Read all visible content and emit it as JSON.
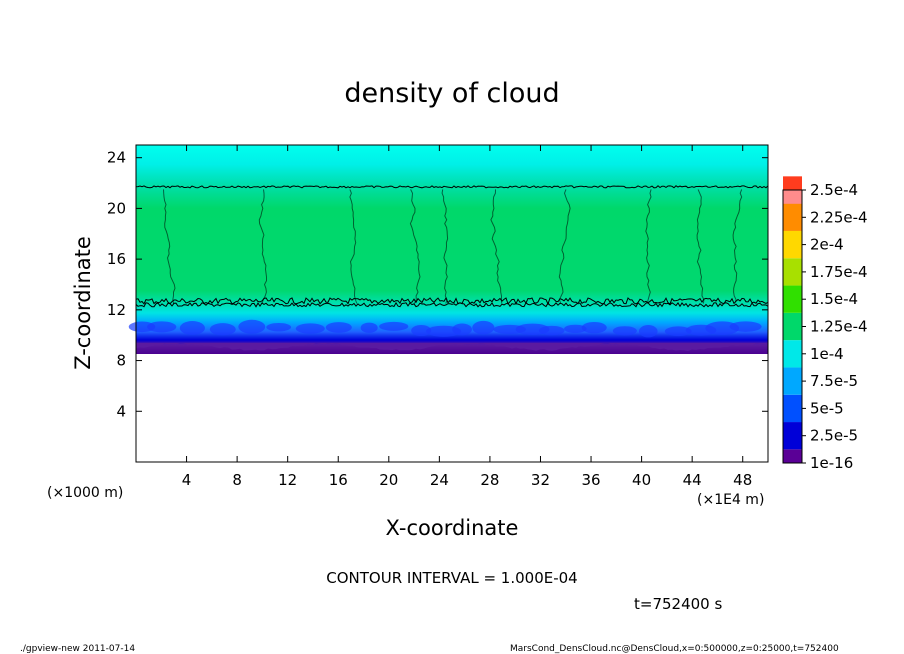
{
  "chart_data": {
    "type": "heatmap",
    "title": "density of cloud",
    "xlabel": "X-coordinate",
    "ylabel": "Z-coordinate",
    "x_unit_note": "(×1E4 m)",
    "y_unit_note": "(×1000 m)",
    "x_ticks": [
      "4",
      "8",
      "12",
      "16",
      "20",
      "24",
      "28",
      "32",
      "36",
      "40",
      "44",
      "48"
    ],
    "y_ticks": [
      "4",
      "8",
      "12",
      "16",
      "20",
      "24"
    ],
    "xlim": [
      0,
      50
    ],
    "ylim": [
      0,
      25
    ],
    "contour_interval": "CONTOUR INTERVAL = 1.000E-04",
    "time_label": "t=752400 s",
    "colorbar": {
      "labels": [
        "1e-16",
        "2.5e-5",
        "5e-5",
        "7.5e-5",
        "1e-4",
        "1.25e-4",
        "1.5e-4",
        "1.75e-4",
        "2e-4",
        "2.25e-4",
        "2.5e-4"
      ],
      "colors": [
        "#5a0096",
        "#0000d8",
        "#0050ff",
        "#00a8ff",
        "#00e8e8",
        "#00d86a",
        "#30e000",
        "#a8e000",
        "#ffd800",
        "#ff8c00",
        "#ff3c1e",
        "#ff8c8c"
      ]
    },
    "cloud_profile": [
      {
        "z": 8.9,
        "value": "1e-16"
      },
      {
        "z": 9.8,
        "value": "2.5e-5"
      },
      {
        "z": 10.6,
        "value": "5e-5"
      },
      {
        "z": 11.6,
        "value": "7.5e-5"
      },
      {
        "z": 12.4,
        "value": "1e-4"
      },
      {
        "z": 22.0,
        "value": "1.25e-4"
      },
      {
        "z": 25.0,
        "value": "7.5e-5"
      }
    ]
  },
  "footer": {
    "left": "./gpview-new  2011-07-14",
    "right": "MarsCond_DensCloud.nc@DensCloud,x=0:500000,z=0:25000,t=752400"
  }
}
